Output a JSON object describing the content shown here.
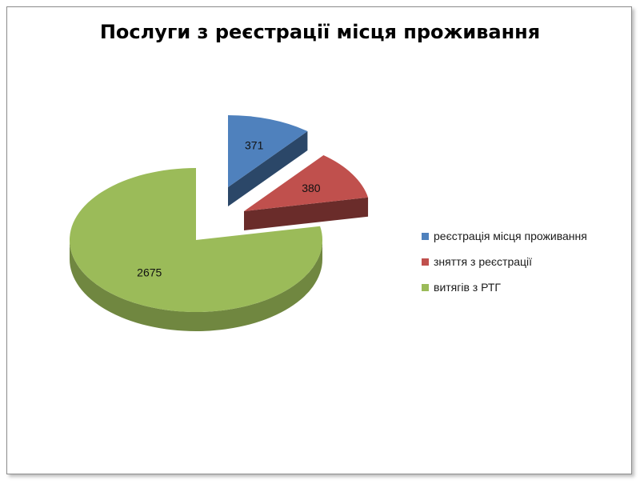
{
  "chart_data": {
    "type": "pie",
    "title": "Послуги з реєстрації місця проживання",
    "categories": [
      "реєстрація місця проживання",
      "зняття з реєстрації",
      "витягів з РТГ"
    ],
    "values": [
      371,
      380,
      2675
    ],
    "colors": [
      "#4f81bd",
      "#c0504d",
      "#9bbb59"
    ],
    "style": "3d-exploded",
    "legend_position": "right"
  }
}
